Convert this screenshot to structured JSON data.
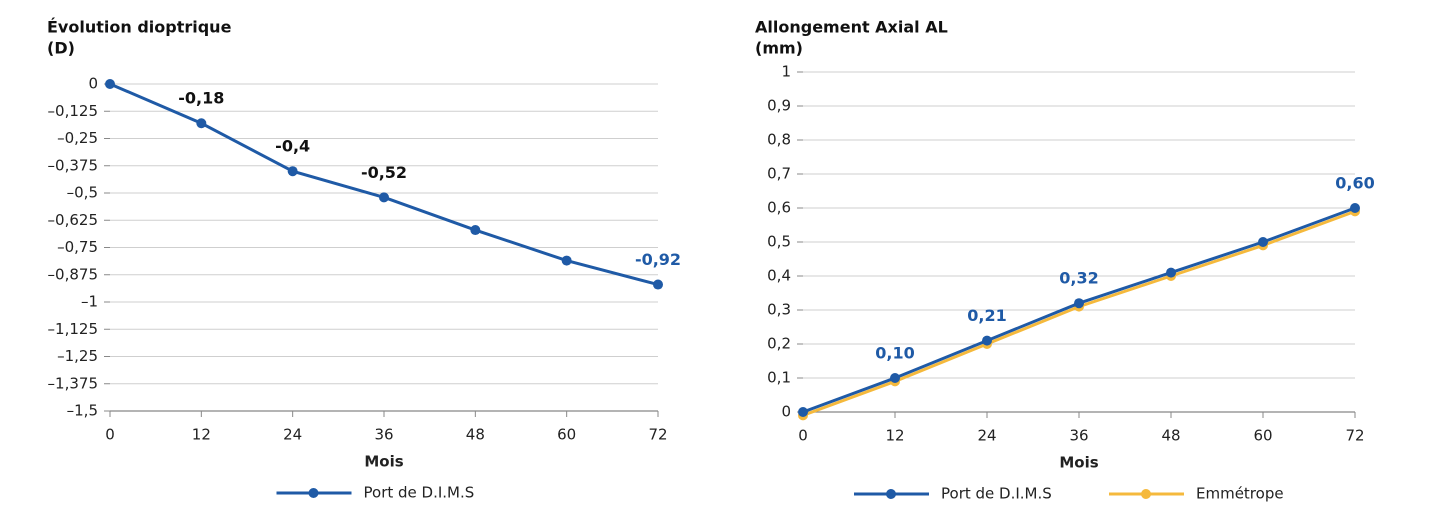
{
  "chart_data": [
    {
      "type": "line",
      "title": "Évolution dioptrique",
      "unit": "(D)",
      "xlabel": "Mois",
      "x": [
        0,
        12,
        24,
        36,
        48,
        60,
        72
      ],
      "series": [
        {
          "name": "Port de D.I.M.S",
          "color": "#1f5aa6",
          "values": [
            0,
            -0.18,
            -0.4,
            -0.52,
            -0.67,
            -0.81,
            -0.92
          ],
          "value_labels": [
            null,
            "-0,18",
            "-0,4",
            "-0,52",
            null,
            null,
            "-0,92"
          ],
          "value_label_colors": [
            null,
            "#111111",
            "#111111",
            "#111111",
            null,
            null,
            "#1f5aa6"
          ]
        }
      ],
      "xlim": [
        0,
        72
      ],
      "xticks": [
        0,
        12,
        24,
        36,
        48,
        60,
        72
      ],
      "ylim": [
        -1.5,
        0
      ],
      "yticks": [
        0,
        {
          "value": -0.125,
          "label": "–0,125"
        },
        {
          "value": -0.25,
          "label": "–0,25"
        },
        {
          "value": -0.375,
          "label": "–0,375"
        },
        {
          "value": -0.5,
          "label": "–0,5"
        },
        {
          "value": -0.625,
          "label": "–0,625"
        },
        {
          "value": -0.75,
          "label": "–0,75"
        },
        {
          "value": -0.875,
          "label": "–0,875"
        },
        {
          "value": -1,
          "label": "–1"
        },
        {
          "value": -1.125,
          "label": "–1,125"
        },
        {
          "value": -1.25,
          "label": "–1,25"
        },
        {
          "value": -1.375,
          "label": "–1,375"
        },
        {
          "value": -1.5,
          "label": "–1,5"
        }
      ],
      "grid": true,
      "legend": "bottom"
    },
    {
      "type": "line",
      "title": "Allongement Axial AL",
      "unit": "(mm)",
      "xlabel": "Mois",
      "x": [
        0,
        12,
        24,
        36,
        48,
        60,
        72
      ],
      "series": [
        {
          "name": "Port de D.I.M.S",
          "color": "#1f5aa6",
          "values": [
            0,
            0.1,
            0.21,
            0.32,
            0.41,
            0.5,
            0.6
          ],
          "value_labels": [
            null,
            "0,10",
            "0,21",
            "0,32",
            null,
            null,
            "0,60"
          ],
          "value_label_colors": [
            null,
            "#1f5aa6",
            "#1f5aa6",
            "#1f5aa6",
            null,
            null,
            "#1f5aa6"
          ]
        },
        {
          "name": "Emmétrope",
          "color": "#f5b93c",
          "values": [
            -0.01,
            0.09,
            0.2,
            0.31,
            0.4,
            0.49,
            0.59
          ]
        }
      ],
      "xlim": [
        0,
        72
      ],
      "xticks": [
        0,
        12,
        24,
        36,
        48,
        60,
        72
      ],
      "ylim": [
        0,
        1
      ],
      "yticks": [
        0,
        {
          "value": 0.1,
          "label": "0,1"
        },
        {
          "value": 0.2,
          "label": "0,2"
        },
        {
          "value": 0.3,
          "label": "0,3"
        },
        {
          "value": 0.4,
          "label": "0,4"
        },
        {
          "value": 0.5,
          "label": "0,5"
        },
        {
          "value": 0.6,
          "label": "0,6"
        },
        {
          "value": 0.7,
          "label": "0,7"
        },
        {
          "value": 0.8,
          "label": "0,8"
        },
        {
          "value": 0.9,
          "label": "0,9"
        },
        1
      ],
      "grid": true,
      "legend": "bottom"
    }
  ]
}
